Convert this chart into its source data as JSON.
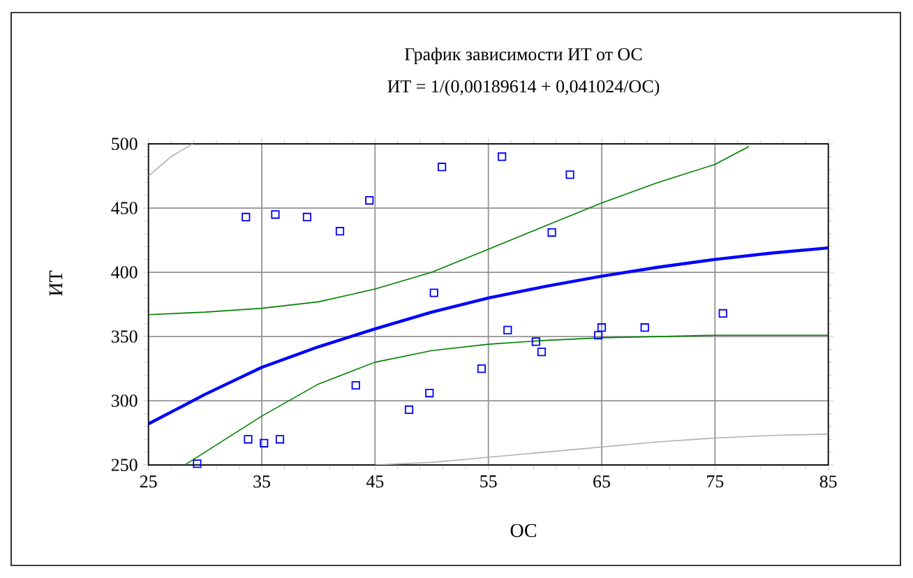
{
  "chart_data": {
    "type": "line",
    "title": "График зависимости ИТ от ОС",
    "subtitle": "ИТ = 1/(0,00189614 + 0,041024/ОС)",
    "xlabel": "ОС",
    "ylabel": "ИТ",
    "xlim": [
      25,
      85
    ],
    "ylim": [
      250,
      500
    ],
    "xticks": [
      25,
      35,
      45,
      55,
      65,
      75,
      85
    ],
    "yticks": [
      250,
      300,
      350,
      400,
      450,
      500
    ],
    "grid": true,
    "series": [
      {
        "type": "line",
        "color": "#0000ff",
        "x": [
          25,
          30,
          35,
          40,
          45,
          50,
          55,
          60,
          65,
          70,
          75,
          80,
          85
        ],
        "values": [
          282,
          305,
          326,
          342,
          356,
          369,
          380,
          389,
          397,
          404,
          410,
          415,
          419
        ]
      },
      {
        "type": "line",
        "color": "#008000",
        "x": [
          25,
          30,
          35,
          40,
          45,
          50,
          55,
          60,
          65,
          70,
          75,
          78
        ],
        "values": [
          367,
          369,
          372,
          377,
          387,
          400,
          418,
          436,
          454,
          470,
          484,
          498
        ]
      },
      {
        "type": "line",
        "color": "#008000",
        "x": [
          28.2,
          30,
          35,
          40,
          45,
          50,
          55,
          60,
          65,
          70,
          75,
          80,
          85
        ],
        "values": [
          250,
          260,
          288,
          313,
          330,
          339,
          344,
          347,
          349,
          350,
          351,
          351,
          351
        ]
      },
      {
        "type": "line",
        "color": "#b0b0b0",
        "x": [
          25,
          27,
          28.9
        ],
        "values": [
          475,
          490,
          500
        ]
      },
      {
        "type": "line",
        "color": "#b0b0b0",
        "x": [
          45,
          50,
          55,
          60,
          65,
          70,
          75,
          80,
          85
        ],
        "values": [
          250,
          252,
          256,
          260,
          264,
          268,
          271,
          273,
          274
        ]
      },
      {
        "type": "scatter",
        "color": "#0000ff",
        "marker": "square",
        "x": [
          29.3,
          33.6,
          33.8,
          35.2,
          36.2,
          36.6,
          39.0,
          41.9,
          43.3,
          44.5,
          48.0,
          49.8,
          50.2,
          50.9,
          54.4,
          56.2,
          56.7,
          59.2,
          59.7,
          60.6,
          62.2,
          64.7,
          65.0,
          68.8,
          75.7
        ],
        "values": [
          251,
          443,
          270,
          267,
          445,
          270,
          443,
          432,
          312,
          456,
          293,
          306,
          384,
          482,
          325,
          490,
          355,
          346,
          338,
          431,
          476,
          351,
          357,
          357,
          368
        ]
      }
    ]
  }
}
